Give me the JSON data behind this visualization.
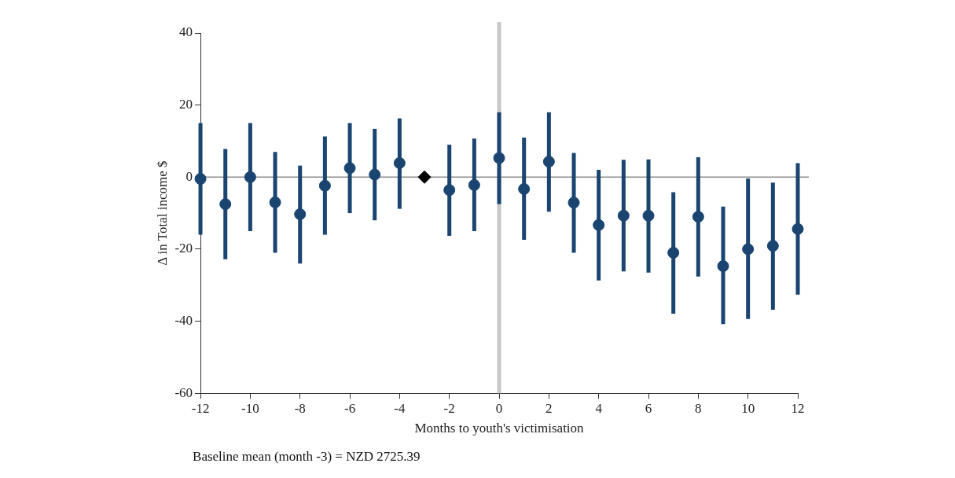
{
  "chart_data": {
    "type": "scatter",
    "xlabel": "Months to youth's victimisation",
    "ylabel": "Δ in Total income $",
    "xlim": [
      -12,
      12
    ],
    "xticks": [
      -12,
      -10,
      -8,
      -6,
      -4,
      -2,
      0,
      2,
      4,
      6,
      8,
      10,
      12
    ],
    "ylim": [
      -60,
      40
    ],
    "yticks": [
      -60,
      -40,
      -20,
      0,
      20,
      40
    ],
    "grid": false,
    "legend": false,
    "series": [
      {
        "color": "#1a4571",
        "marker": "circle",
        "x": [
          -12,
          -11,
          -10,
          -9,
          -8,
          -7,
          -6,
          -5,
          -4,
          -2,
          -1,
          0,
          1,
          2,
          3,
          4,
          5,
          6,
          7,
          8,
          9,
          10,
          11,
          12
        ],
        "values": [
          -0.5,
          -7.5,
          0,
          -7,
          -10.3,
          -2.4,
          2.5,
          0.7,
          3.9,
          -3.6,
          -2.2,
          5.3,
          -3.3,
          4.3,
          -7.1,
          -13.3,
          -10.7,
          -10.7,
          -21,
          -11,
          -24.7,
          -20,
          -19.1,
          -14.4
        ],
        "errors": [
          [
            -16,
            15
          ],
          [
            -22.8,
            7.8
          ],
          [
            -15,
            15
          ],
          [
            -21,
            7
          ],
          [
            -24,
            3.2
          ],
          [
            -16,
            11.3
          ],
          [
            -10,
            15
          ],
          [
            -12,
            13.4
          ],
          [
            -8.8,
            16.3
          ],
          [
            -16.3,
            9
          ],
          [
            -15,
            10.7
          ],
          [
            -7.5,
            18
          ],
          [
            -17.4,
            11
          ],
          [
            -9.6,
            18
          ],
          [
            -21,
            6.7
          ],
          [
            -28.7,
            2
          ],
          [
            -26.2,
            4.8
          ],
          [
            -26.5,
            4.9
          ],
          [
            -37.9,
            -4.2
          ],
          [
            -27.6,
            5.5
          ],
          [
            -40.8,
            -8.2
          ],
          [
            -39.4,
            -0.4
          ],
          [
            -36.8,
            -1.5
          ],
          [
            -32.6,
            3.9
          ]
        ]
      },
      {
        "color": "#000000",
        "marker": "diamond",
        "x": [
          -3
        ],
        "values": [
          0
        ]
      }
    ],
    "ref_lines": [
      {
        "axis": "x",
        "value": 0,
        "color": "#c8c8c8"
      },
      {
        "axis": "y",
        "value": 0,
        "color": "#8c8c8c"
      }
    ],
    "annotations": [
      "Baseline mean (month -3) = NZD 2725.39"
    ]
  }
}
